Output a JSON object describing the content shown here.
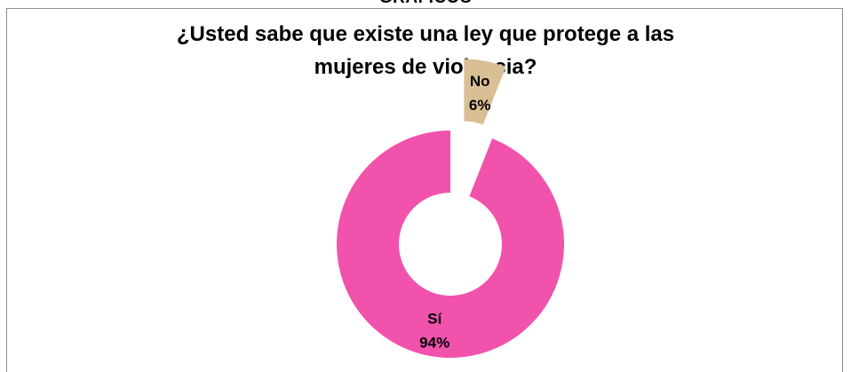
{
  "header_partial_text": "GRÁFICOS",
  "chart_data": {
    "type": "pie",
    "style": "doughnut-exploded",
    "title": "¿Usted sabe que existe una ley que protege a las mujeres de violencia?",
    "xlabel": "",
    "ylabel": "",
    "legend": "none",
    "slices": [
      {
        "label": "No",
        "value": 6,
        "value_label": "6%",
        "color": "#d9bf94"
      },
      {
        "label": "Sí",
        "value": 94,
        "value_label": "94%",
        "color": "#f152ac"
      }
    ]
  }
}
